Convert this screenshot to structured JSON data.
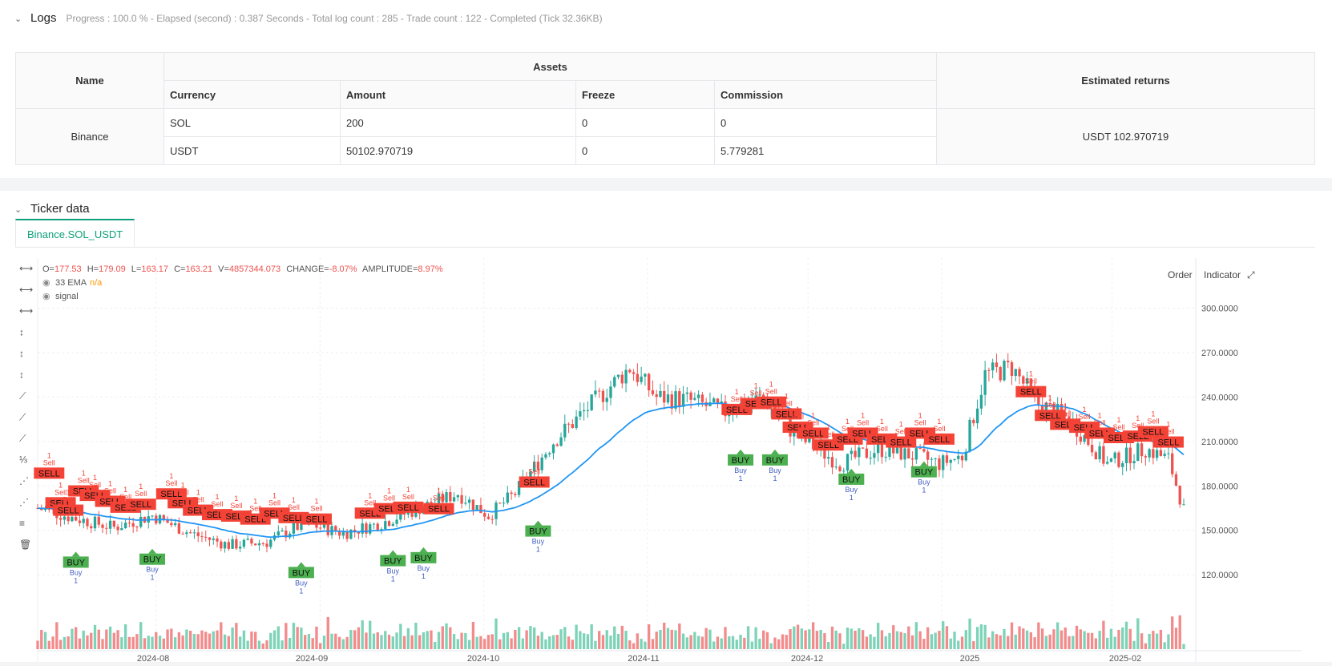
{
  "logs": {
    "title": "Logs",
    "status": "Progress : 100.0 % - Elapsed (second) : 0.387  Seconds - Total log count : 285 - Trade count : 122 - Completed (Tick 32.36KB)"
  },
  "assets_table": {
    "name_header": "Name",
    "assets_header": "Assets",
    "returns_header": "Estimated returns",
    "columns": [
      "Currency",
      "Amount",
      "Freeze",
      "Commission"
    ],
    "exchange": "Binance",
    "rows": [
      [
        "SOL",
        "200",
        "0",
        "0"
      ],
      [
        "USDT",
        "50102.970719",
        "0",
        "5.779281"
      ]
    ],
    "estimated_returns": "USDT 102.970719"
  },
  "ticker": {
    "title": "Ticker data",
    "tab": "Binance.SOL_USDT",
    "order_btn": "Order",
    "indicator_btn": "Indicator"
  },
  "ohlc": {
    "o_label": "O=",
    "o": "177.53",
    "h_label": "H=",
    "h": "179.09",
    "l_label": "L=",
    "l": "163.17",
    "c_label": "C=",
    "c": "163.21",
    "v_label": "V=",
    "v": "4857344.073",
    "change_label": "CHANGE=",
    "change": "-8.07%",
    "amp_label": "AMPLITUDE=",
    "amp": "8.97%"
  },
  "legend": {
    "ema": "33 EMA",
    "ema_value": "n/a",
    "signal": "signal"
  },
  "colors": {
    "up": "#26a69a",
    "down": "#ef5350",
    "ema": "#2196f3",
    "buy": "#4caf50",
    "sell": "#f44336",
    "accent": "#0e9f7a"
  },
  "chart_data": {
    "type": "candlestick",
    "x_ticks": [
      "2024-08",
      "2024-09",
      "2024-10",
      "2024-11",
      "2024-12",
      "2025",
      "2025-02"
    ],
    "y_ticks": [
      "120.0000",
      "150.0000",
      "180.0000",
      "210.0000",
      "240.0000",
      "270.0000",
      "300.0000"
    ],
    "y_tick_values": [
      120,
      150,
      180,
      210,
      240,
      270,
      300
    ],
    "ylim": [
      99,
      323
    ],
    "anchors": [
      {
        "day": 0,
        "price": 165
      },
      {
        "day": 10,
        "price": 158
      },
      {
        "day": 20,
        "price": 152
      },
      {
        "day": 30,
        "price": 160
      },
      {
        "day": 40,
        "price": 148
      },
      {
        "day": 50,
        "price": 140
      },
      {
        "day": 60,
        "price": 142
      },
      {
        "day": 70,
        "price": 155
      },
      {
        "day": 80,
        "price": 148
      },
      {
        "day": 90,
        "price": 155
      },
      {
        "day": 100,
        "price": 165
      },
      {
        "day": 110,
        "price": 175
      },
      {
        "day": 118,
        "price": 160
      },
      {
        "day": 125,
        "price": 175
      },
      {
        "day": 135,
        "price": 210
      },
      {
        "day": 145,
        "price": 235
      },
      {
        "day": 155,
        "price": 260
      },
      {
        "day": 162,
        "price": 240
      },
      {
        "day": 170,
        "price": 238
      },
      {
        "day": 180,
        "price": 230
      },
      {
        "day": 190,
        "price": 240
      },
      {
        "day": 198,
        "price": 215
      },
      {
        "day": 210,
        "price": 195
      },
      {
        "day": 220,
        "price": 205
      },
      {
        "day": 230,
        "price": 200
      },
      {
        "day": 236,
        "price": 195
      },
      {
        "day": 242,
        "price": 200
      },
      {
        "day": 248,
        "price": 255
      },
      {
        "day": 255,
        "price": 260
      },
      {
        "day": 262,
        "price": 235
      },
      {
        "day": 270,
        "price": 225
      },
      {
        "day": 280,
        "price": 195
      },
      {
        "day": 290,
        "price": 205
      },
      {
        "day": 296,
        "price": 198
      },
      {
        "day": 300,
        "price": 164
      }
    ],
    "buy_markers": [
      {
        "day": 10,
        "price": 128
      },
      {
        "day": 30,
        "price": 130
      },
      {
        "day": 69,
        "price": 121
      },
      {
        "day": 93,
        "price": 129
      },
      {
        "day": 101,
        "price": 131
      },
      {
        "day": 131,
        "price": 149
      },
      {
        "day": 184,
        "price": 197
      },
      {
        "day": 193,
        "price": 197
      },
      {
        "day": 213,
        "price": 184
      },
      {
        "day": 232,
        "price": 189
      }
    ],
    "sell_markers": [
      {
        "day": 3,
        "price": 187
      },
      {
        "day": 6,
        "price": 167
      },
      {
        "day": 8,
        "price": 162
      },
      {
        "day": 12,
        "price": 175
      },
      {
        "day": 15,
        "price": 172
      },
      {
        "day": 19,
        "price": 168
      },
      {
        "day": 23,
        "price": 164
      },
      {
        "day": 27,
        "price": 166
      },
      {
        "day": 35,
        "price": 173
      },
      {
        "day": 38,
        "price": 167
      },
      {
        "day": 42,
        "price": 162
      },
      {
        "day": 47,
        "price": 159
      },
      {
        "day": 52,
        "price": 158
      },
      {
        "day": 57,
        "price": 156
      },
      {
        "day": 62,
        "price": 160
      },
      {
        "day": 67,
        "price": 157
      },
      {
        "day": 73,
        "price": 156
      },
      {
        "day": 87,
        "price": 160
      },
      {
        "day": 92,
        "price": 163
      },
      {
        "day": 97,
        "price": 164
      },
      {
        "day": 105,
        "price": 163
      },
      {
        "day": 130,
        "price": 181
      },
      {
        "day": 183,
        "price": 230
      },
      {
        "day": 188,
        "price": 234
      },
      {
        "day": 192,
        "price": 235
      },
      {
        "day": 196,
        "price": 227
      },
      {
        "day": 199,
        "price": 218
      },
      {
        "day": 203,
        "price": 214
      },
      {
        "day": 207,
        "price": 206
      },
      {
        "day": 212,
        "price": 210
      },
      {
        "day": 216,
        "price": 214
      },
      {
        "day": 221,
        "price": 210
      },
      {
        "day": 226,
        "price": 208
      },
      {
        "day": 231,
        "price": 214
      },
      {
        "day": 236,
        "price": 210
      },
      {
        "day": 260,
        "price": 242
      },
      {
        "day": 265,
        "price": 226
      },
      {
        "day": 269,
        "price": 220
      },
      {
        "day": 274,
        "price": 218
      },
      {
        "day": 278,
        "price": 214
      },
      {
        "day": 283,
        "price": 211
      },
      {
        "day": 288,
        "price": 212
      },
      {
        "day": 292,
        "price": 215
      },
      {
        "day": 296,
        "price": 208
      }
    ],
    "buy_label": "BUY",
    "sell_label": "SELL",
    "buy_small": "Buy",
    "sell_small": "Sell",
    "qty": "1"
  }
}
